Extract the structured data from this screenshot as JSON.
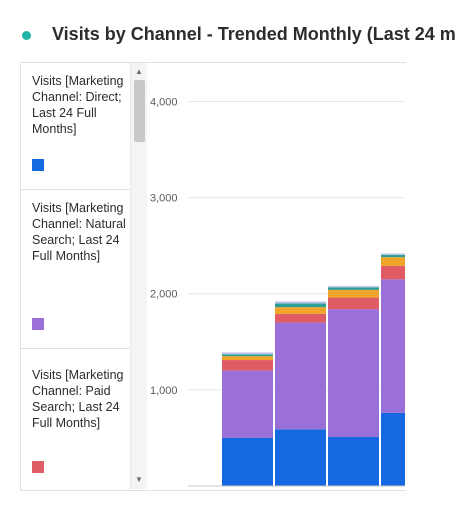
{
  "header": {
    "title": "Visits by Channel - Trended Monthly (Last 24 m"
  },
  "legend": {
    "items": [
      {
        "label": "Visits [Marketing Channel: Direct; Last 24 Full Months]",
        "color": "#1569e0"
      },
      {
        "label": "Visits [Marketing Channel: Natural Search; Last 24 Full Months]",
        "color": "#9b6fd8"
      },
      {
        "label": "Visits [Marketing Channel: Paid Search; Last 24 Full Months]",
        "color": "#e05c65"
      }
    ]
  },
  "chart_data": {
    "type": "bar",
    "stacked": true,
    "grid": true,
    "ylim": [
      0,
      4400
    ],
    "yticks": [
      {
        "value": 1000,
        "label": "1,000"
      },
      {
        "value": 2000,
        "label": "2,000"
      },
      {
        "value": 3000,
        "label": "3,000"
      },
      {
        "value": 4000,
        "label": "4,000"
      }
    ],
    "series": [
      {
        "name": "Visits [Marketing Channel: Direct; Last 24 Full Months]",
        "color": "#1569e0",
        "values": [
          0,
          500,
          590,
          510,
          760
        ]
      },
      {
        "name": "Visits [Marketing Channel: Natural Search; Last 24 Full Months]",
        "color": "#9b6fd8",
        "values": [
          0,
          700,
          1110,
          1330,
          1390
        ]
      },
      {
        "name": "Visits [Marketing Channel: Paid Search; Last 24 Full Months]",
        "color": "#e05c65",
        "values": [
          0,
          110,
          90,
          120,
          140
        ]
      },
      {
        "color": "#f0a429",
        "values": [
          0,
          40,
          70,
          80,
          90
        ]
      },
      {
        "color": "#2e9e96",
        "values": [
          0,
          20,
          40,
          25,
          25
        ]
      },
      {
        "color": "#bfc5e8",
        "values": [
          0,
          20,
          20,
          15,
          15
        ]
      }
    ]
  }
}
